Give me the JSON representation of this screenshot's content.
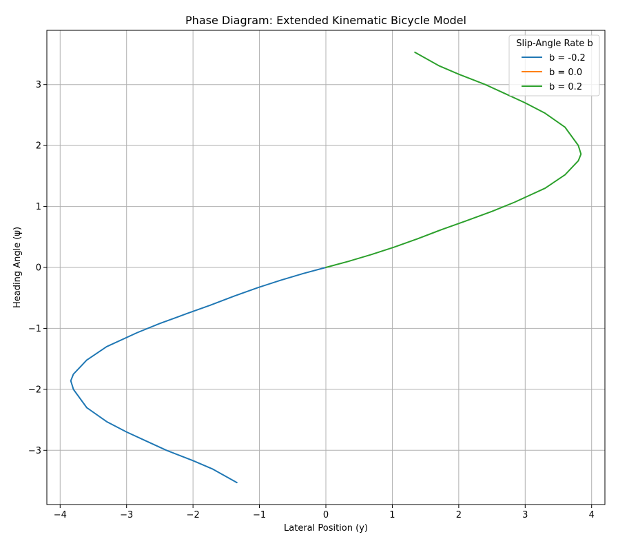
{
  "chart_data": {
    "type": "line",
    "title": "Phase Diagram: Extended Kinematic Bicycle Model",
    "xlabel": "Lateral Position (y)",
    "ylabel": "Heading Angle (ψ)",
    "xlim": [
      -4.2,
      4.2
    ],
    "ylim": [
      -3.89,
      3.89
    ],
    "xticks": [
      -4,
      -3,
      -2,
      -1,
      0,
      1,
      2,
      3,
      4
    ],
    "xtick_labels": [
      "−4",
      "−3",
      "−2",
      "−1",
      "0",
      "1",
      "2",
      "3",
      "4"
    ],
    "yticks": [
      -3,
      -2,
      -1,
      0,
      1,
      2,
      3
    ],
    "ytick_labels": [
      "−3",
      "−2",
      "−1",
      "0",
      "1",
      "2",
      "3"
    ],
    "grid": true,
    "legend": {
      "title": "Slip-Angle Rate b",
      "placement": "top-right"
    },
    "series": [
      {
        "name": "b = -0.2",
        "color": "#1f77b4",
        "points": [
          [
            0,
            0
          ],
          [
            -0.34,
            -0.1
          ],
          [
            -0.68,
            -0.21
          ],
          [
            -1.02,
            -0.33
          ],
          [
            -1.38,
            -0.47
          ],
          [
            -1.74,
            -0.62
          ],
          [
            -2.1,
            -0.76
          ],
          [
            -2.5,
            -0.92
          ],
          [
            -2.84,
            -1.07
          ],
          [
            -3.3,
            -1.3
          ],
          [
            -3.6,
            -1.52
          ],
          [
            -3.8,
            -1.75
          ],
          [
            -3.84,
            -1.86
          ],
          [
            -3.8,
            -2.0
          ],
          [
            -3.6,
            -2.3
          ],
          [
            -3.3,
            -2.53
          ],
          [
            -3.0,
            -2.7
          ],
          [
            -2.7,
            -2.85
          ],
          [
            -2.4,
            -3.0
          ],
          [
            -2.0,
            -3.17
          ],
          [
            -1.7,
            -3.31
          ],
          [
            -1.34,
            -3.53
          ]
        ]
      },
      {
        "name": "b = 0.0",
        "color": "#ff7f0e",
        "points": [
          [
            0,
            0
          ]
        ]
      },
      {
        "name": "b = 0.2",
        "color": "#2ca02c",
        "points": [
          [
            0,
            0
          ],
          [
            0.34,
            0.1
          ],
          [
            0.68,
            0.21
          ],
          [
            1.02,
            0.33
          ],
          [
            1.38,
            0.47
          ],
          [
            1.74,
            0.62
          ],
          [
            2.1,
            0.76
          ],
          [
            2.5,
            0.92
          ],
          [
            2.84,
            1.07
          ],
          [
            3.3,
            1.3
          ],
          [
            3.6,
            1.52
          ],
          [
            3.8,
            1.75
          ],
          [
            3.84,
            1.86
          ],
          [
            3.8,
            2.0
          ],
          [
            3.6,
            2.3
          ],
          [
            3.3,
            2.53
          ],
          [
            3.0,
            2.7
          ],
          [
            2.7,
            2.85
          ],
          [
            2.4,
            3.0
          ],
          [
            2.0,
            3.17
          ],
          [
            1.7,
            3.31
          ],
          [
            1.34,
            3.53
          ]
        ]
      }
    ]
  }
}
